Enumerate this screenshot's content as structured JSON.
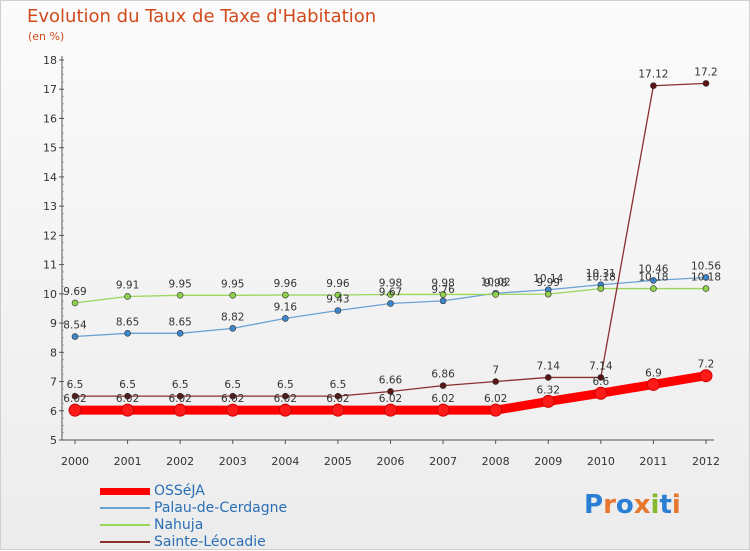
{
  "title": "Evolution du Taux de Taxe d'Habitation",
  "subtitle": "(en %)",
  "logo": {
    "text": "Proxiti",
    "colors": [
      "#2b7fd4",
      "#e8772e",
      "#2b7fd4",
      "#e8772e",
      "#86b82e",
      "#2b7fd4",
      "#e8772e"
    ]
  },
  "chart_data": {
    "type": "line",
    "x": [
      2000,
      2001,
      2002,
      2003,
      2004,
      2005,
      2006,
      2007,
      2008,
      2009,
      2010,
      2011,
      2012
    ],
    "ylim": [
      5,
      18
    ],
    "yticks": [
      5,
      6,
      7,
      8,
      9,
      10,
      11,
      12,
      13,
      14,
      15,
      16,
      17,
      18
    ],
    "grid": false,
    "legend_position": "bottom-left",
    "series": [
      {
        "name": "OSSéJA",
        "color": "#ff0000",
        "width": 9,
        "values": [
          6.02,
          6.02,
          6.02,
          6.02,
          6.02,
          6.02,
          6.02,
          6.02,
          6.02,
          6.32,
          6.6,
          6.9,
          7.2
        ],
        "labels": [
          "6.02",
          "6.02",
          "6.02",
          "6.02",
          "6.02",
          "6.02",
          "6.02",
          "6.02",
          "6.02",
          "6.32",
          "6.6",
          "6.9",
          "7.2"
        ]
      },
      {
        "name": "Palau-de-Cerdagne",
        "color": "#6aa1d4",
        "width": 1.3,
        "values": [
          8.54,
          8.65,
          8.65,
          8.82,
          9.16,
          9.43,
          9.67,
          9.76,
          10.02,
          10.14,
          10.31,
          10.46,
          10.56
        ],
        "labels": [
          "8.54",
          "8.65",
          "8.65",
          "8.82",
          "9.16",
          "9.43",
          "9.67",
          "9.76",
          "10.02",
          "10.14",
          "10.31",
          "10.46",
          "10.56"
        ]
      },
      {
        "name": "Nahuja",
        "color": "#99d65a",
        "width": 1.3,
        "values": [
          9.69,
          9.91,
          9.95,
          9.95,
          9.96,
          9.96,
          9.98,
          9.98,
          9.98,
          9.99,
          10.18,
          10.18,
          10.18
        ],
        "labels": [
          "9.69",
          "9.91",
          "9.95",
          "9.95",
          "9.96",
          "9.96",
          "9.98",
          "9.98",
          "9.98",
          "9.99",
          "10.18",
          "10.18",
          "10.18"
        ]
      },
      {
        "name": "Sainte-Léocadie",
        "color": "#8b2e2e",
        "width": 1.3,
        "values": [
          6.5,
          6.5,
          6.5,
          6.5,
          6.5,
          6.5,
          6.66,
          6.86,
          7,
          7.14,
          7.14,
          17.12,
          17.2
        ],
        "labels": [
          "6.5",
          "6.5",
          "6.5",
          "6.5",
          "6.5",
          "6.5",
          "6.66",
          "6.86",
          "7",
          "7.14",
          "7.14",
          "17.12",
          "17.2"
        ]
      }
    ]
  }
}
